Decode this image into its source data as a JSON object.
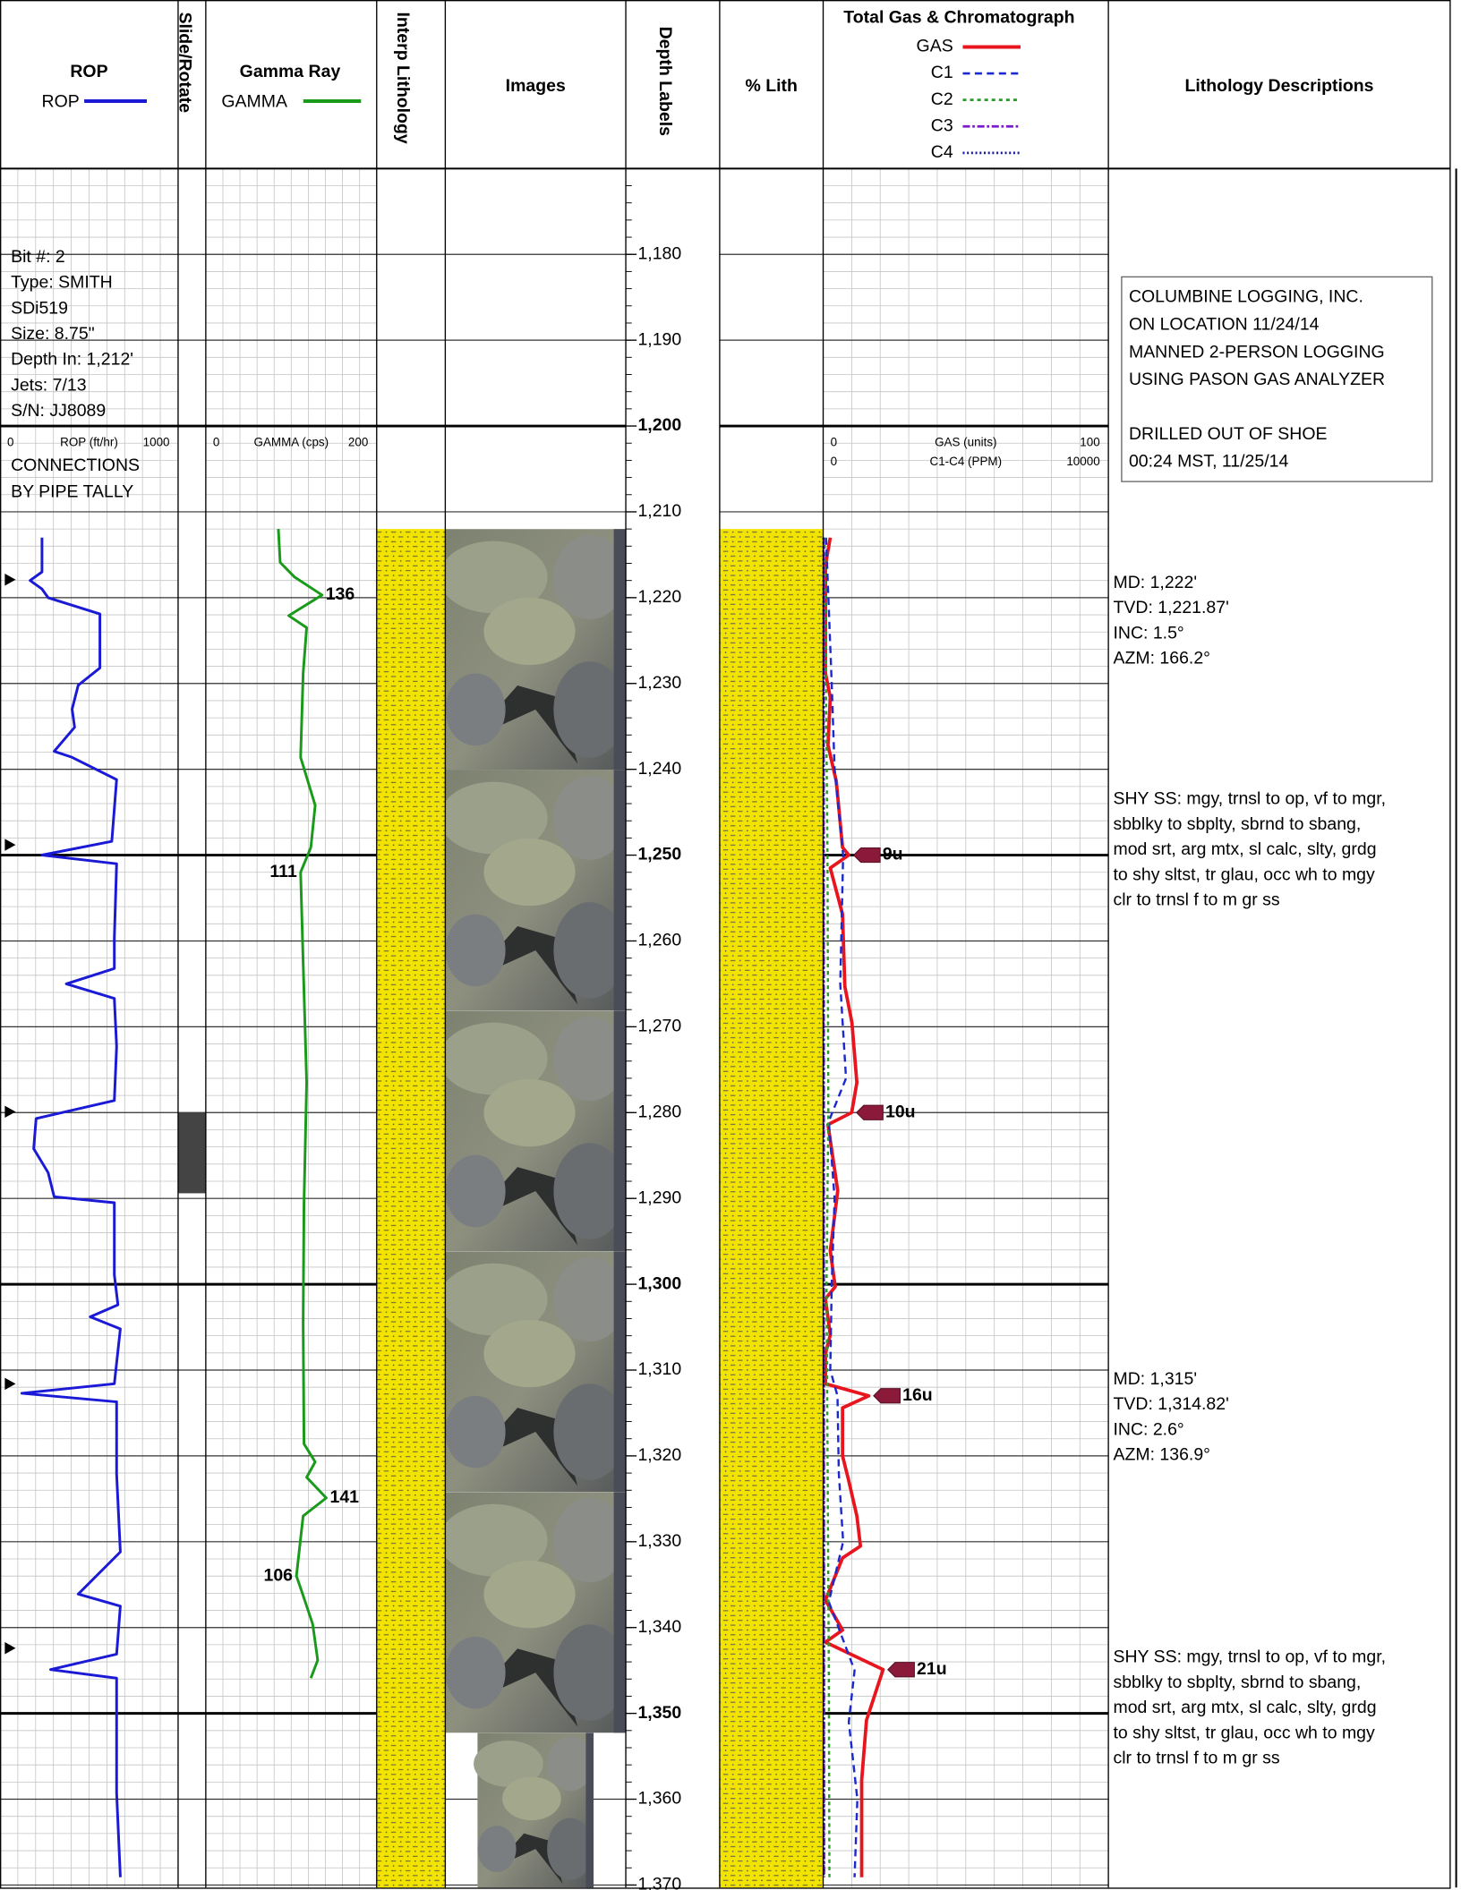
{
  "columns": {
    "rop": "ROP",
    "slide": "Slide/Rotate",
    "gamma": "Gamma Ray",
    "interp": "Interp Lithology",
    "images": "Images",
    "depth": "Depth Labels",
    "lith": "% Lith",
    "gas": "Total Gas & Chromatograph",
    "desc": "Lithology Descriptions"
  },
  "depth_axis": {
    "ylim": [
      1170,
      1370.3
    ],
    "minor_step": 2,
    "ticks": [
      {
        "value": 1180,
        "label": "1,180"
      },
      {
        "value": 1190,
        "label": "1,190"
      },
      {
        "value": 1200,
        "label": "1,200"
      },
      {
        "value": 1210,
        "label": "1,210"
      },
      {
        "value": 1220,
        "label": "1,220"
      },
      {
        "value": 1230,
        "label": "1,230"
      },
      {
        "value": 1240,
        "label": "1,240"
      },
      {
        "value": 1250,
        "label": "1,250"
      },
      {
        "value": 1260,
        "label": "1,260"
      },
      {
        "value": 1270,
        "label": "1,270"
      },
      {
        "value": 1280,
        "label": "1,280"
      },
      {
        "value": 1290,
        "label": "1,290"
      },
      {
        "value": 1300,
        "label": "1,300"
      },
      {
        "value": 1310,
        "label": "1,310"
      },
      {
        "value": 1320,
        "label": "1,320"
      },
      {
        "value": 1330,
        "label": "1,330"
      },
      {
        "value": 1340,
        "label": "1,340"
      },
      {
        "value": 1350,
        "label": "1,350"
      },
      {
        "value": 1360,
        "label": "1,360"
      },
      {
        "value": 1370,
        "label": "1,370"
      }
    ]
  },
  "bit_info": [
    "Bit #: 2",
    "Type: SMITH",
    "SDi519",
    "Size: 8.75\"",
    "Depth In: 1,212'",
    "Jets: 7/13",
    "S/N: JJ8089"
  ],
  "connection_note": [
    "CONNECTIONS",
    "BY PIPE TALLY"
  ],
  "rop": {
    "name": "ROP",
    "color": "#1a1ad6",
    "axis_title": "ROP (ft/hr)",
    "xlim": [
      0,
      1000
    ],
    "xgrid": [
      0,
      100,
      200,
      300,
      400,
      500,
      600,
      700,
      800,
      900,
      1000
    ],
    "depths": [
      1213.0,
      1217.0,
      1218.0,
      1219.0,
      1220.0,
      1221.9,
      1228.2,
      1230.2,
      1233.0,
      1235.1,
      1237.9,
      1238.6,
      1241.2,
      1248.4,
      1250.0,
      1251.0,
      1259.7,
      1263.2,
      1265.0,
      1266.7,
      1272.3,
      1278.6,
      1280.7,
      1284.2,
      1287.0,
      1289.8,
      1290.5,
      1298.9,
      1302.4,
      1303.8,
      1305.2,
      1311.6,
      1312.7,
      1313.7,
      1322.1,
      1331.2,
      1336.1,
      1337.5,
      1343.1,
      1344.9,
      1345.9,
      1359.2,
      1369.1
    ],
    "values": [
      236,
      236,
      169,
      236,
      270,
      561,
      561,
      439,
      405,
      419,
      304,
      405,
      655,
      628,
      236,
      655,
      642,
      642,
      372,
      642,
      655,
      642,
      203,
      189,
      270,
      304,
      642,
      642,
      662,
      507,
      676,
      642,
      122,
      655,
      655,
      676,
      439,
      676,
      655,
      284,
      655,
      655,
      676
    ],
    "connections": [
      1217.9,
      1248.8,
      1279.9,
      1311.6,
      1342.4
    ]
  },
  "slide": {
    "color": "#444444",
    "intervals": [
      [
        1280,
        1289.4
      ]
    ]
  },
  "gamma": {
    "name": "GAMMA",
    "color": "#1a9a1a",
    "axis_title": "GAMMA (cps)",
    "xlim": [
      0,
      200
    ],
    "xgrid": [
      0,
      20,
      40,
      60,
      80,
      100,
      120,
      140,
      160,
      180,
      200
    ],
    "depths": [
      1212.0,
      1215.9,
      1217.6,
      1219.7,
      1222.1,
      1223.5,
      1228.8,
      1238.6,
      1244.2,
      1249.1,
      1252.0,
      1262.5,
      1276.5,
      1290.5,
      1304.5,
      1318.6,
      1320.7,
      1322.5,
      1324.9,
      1327.0,
      1334.0,
      1335.4,
      1339.6,
      1343.8,
      1345.9
    ],
    "values": [
      85,
      87,
      104,
      136,
      97,
      118,
      114,
      111,
      128,
      123,
      111,
      114,
      118,
      115,
      114,
      115,
      128,
      118,
      141,
      114,
      106,
      111,
      125,
      131,
      123
    ],
    "value_labels": [
      null,
      null,
      null,
      "136",
      null,
      null,
      null,
      null,
      null,
      null,
      "111",
      null,
      null,
      null,
      null,
      null,
      null,
      null,
      "141",
      null,
      "106",
      null,
      null,
      null,
      null
    ]
  },
  "lithology": {
    "color": "#f2e400",
    "top": 1212,
    "percent": 100
  },
  "gas": {
    "axis_title": "GAS (units)",
    "xlim": [
      0,
      100
    ],
    "chrom_axis_title": "C1-C4 (PPM)",
    "chrom_xlim": [
      0,
      10000
    ],
    "xgrid": [
      0,
      10,
      20,
      30,
      40,
      50,
      60,
      70,
      80,
      90,
      100
    ],
    "series": [
      {
        "name": "GAS",
        "color": "#e8141e",
        "dash": "none",
        "axis": "gas",
        "depths": [
          1213.0,
          1216.2,
          1228.8,
          1231.6,
          1237.2,
          1241.4,
          1249.1,
          1250.0,
          1251.5,
          1256.9,
          1265.3,
          1269.5,
          1276.5,
          1280.0,
          1281.4,
          1289.1,
          1296.1,
          1300.3,
          1301.7,
          1305.9,
          1308.1,
          1311.6,
          1313.0,
          1314.4,
          1320.0,
          1322.8,
          1327.0,
          1330.5,
          1331.9,
          1336.8,
          1340.3,
          1341.7,
          1344.9,
          1350.8,
          1357.8,
          1369.1
        ],
        "values": [
          2.5,
          0.8,
          0.8,
          2.5,
          1.7,
          4.6,
          6.8,
          9,
          2.5,
          6.8,
          7.6,
          10.1,
          11.8,
          10,
          1.7,
          5.1,
          2.5,
          4.2,
          0.8,
          2.5,
          0.8,
          0.8,
          16,
          6.8,
          6.8,
          8.9,
          11.8,
          13.1,
          6.8,
          0.8,
          6.8,
          0.8,
          21,
          15.2,
          13.5,
          13.5
        ]
      },
      {
        "name": "C1",
        "color": "#1a2ad0",
        "dash": "6,4",
        "axis": "chrom",
        "depths": [
          1213,
          1230,
          1240,
          1250,
          1265,
          1276,
          1281,
          1290,
          1300,
          1310,
          1313,
          1322,
          1330,
          1337,
          1345,
          1351,
          1360,
          1369.1
        ],
        "values": [
          100,
          300,
          400,
          700,
          600,
          800,
          200,
          400,
          300,
          250,
          500,
          550,
          700,
          200,
          1100,
          900,
          1200,
          1100
        ]
      },
      {
        "name": "C2",
        "color": "#2a9a2a",
        "dash": "3,3",
        "axis": "chrom",
        "depths": [
          1213,
          1250,
          1280,
          1300,
          1345,
          1369.1
        ],
        "values": [
          50,
          150,
          180,
          120,
          200,
          220
        ]
      },
      {
        "name": "C3",
        "color": "#7a1ac8",
        "dash": "6,2,2,2",
        "axis": "chrom",
        "depths": [
          1213,
          1300,
          1369.1
        ],
        "values": [
          20,
          30,
          40
        ]
      },
      {
        "name": "C4",
        "color": "#1a1a9a",
        "dash": "1.5,2",
        "axis": "chrom",
        "depths": [
          1213,
          1300,
          1369.1
        ],
        "values": [
          10,
          15,
          20
        ]
      }
    ],
    "peaks": [
      {
        "depth": 1250,
        "value": 9,
        "label": "9u"
      },
      {
        "depth": 1280,
        "value": 10,
        "label": "10u"
      },
      {
        "depth": 1313,
        "value": 16,
        "label": "16u"
      },
      {
        "depth": 1344.9,
        "value": 21,
        "label": "21u"
      }
    ]
  },
  "descriptions": {
    "notes": [
      [
        "COLUMBINE LOGGING, INC.",
        "ON LOCATION 11/24/14",
        "MANNED 2-PERSON LOGGING",
        "USING PASON GAS ANALYZER"
      ],
      [
        "DRILLED OUT OF SHOE",
        "00:24 MST, 11/25/14"
      ]
    ],
    "entries": [
      {
        "depth": 1217.2,
        "lines": [
          "MD: 1,222'",
          "TVD: 1,221.87'",
          "INC: 1.5°",
          "AZM: 166.2°"
        ]
      },
      {
        "depth": 1242.4,
        "lines": [
          "SHY SS: mgy, trnsl to op, vf to mgr,",
          "sbblky to sbplty, sbrnd to sbang,",
          "mod srt, arg mtx, sl calc, slty, grdg",
          "to shy sltst, tr glau, occ wh to mgy",
          "clr to trnsl f to m gr ss"
        ]
      },
      {
        "depth": 1310,
        "lines": [
          "MD: 1,315'",
          "TVD: 1,314.82'",
          "INC: 2.6°",
          "AZM: 136.9°"
        ]
      },
      {
        "depth": 1342.4,
        "lines": [
          "SHY SS: mgy, trnsl to op, vf to mgr,",
          "sbblky to sbplty, sbrnd to sbang,",
          "mod srt, arg mtx, sl calc, slty, grdg",
          "to shy sltst, tr glau, occ wh to mgy",
          "clr to trnsl f to m gr ss"
        ]
      }
    ]
  }
}
